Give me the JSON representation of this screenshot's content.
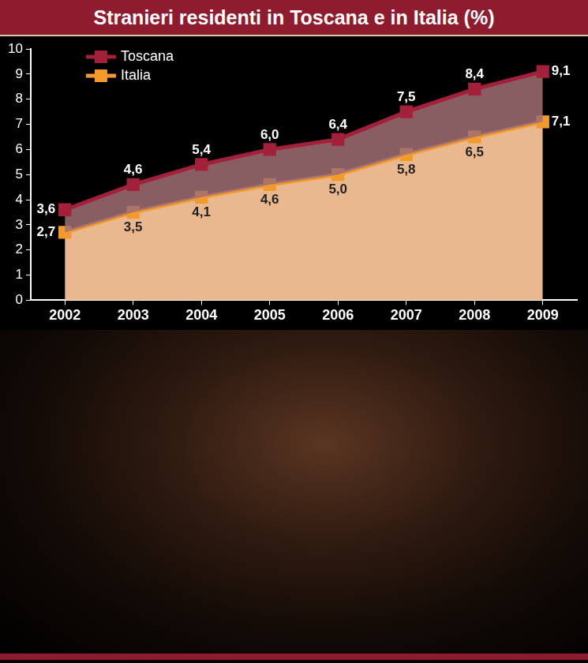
{
  "chart_data": {
    "type": "line",
    "title": "Stranieri residenti in Toscana e in Italia (%)",
    "categories": [
      "2002",
      "2003",
      "2004",
      "2005",
      "2006",
      "2007",
      "2008",
      "2009"
    ],
    "series": [
      {
        "name": "Toscana",
        "color": "#a3203a",
        "marker": "square",
        "values": [
          3.6,
          4.6,
          5.4,
          6.0,
          6.4,
          7.5,
          8.4,
          9.1
        ],
        "value_labels": [
          "3,6",
          "4,6",
          "5,4",
          "6,0",
          "6,4",
          "7,5",
          "8,4",
          "9,1"
        ]
      },
      {
        "name": "Italia",
        "color": "#f39a2c",
        "marker": "square",
        "values": [
          2.7,
          3.5,
          4.1,
          4.6,
          5.0,
          5.8,
          6.5,
          7.1
        ],
        "value_labels": [
          "2,7",
          "3,5",
          "4,1",
          "4,6",
          "5,0",
          "5,8",
          "6,5",
          "7,1"
        ]
      }
    ],
    "ylim": [
      0,
      10
    ],
    "yticks": [
      0,
      1,
      2,
      3,
      4,
      5,
      6,
      7,
      8,
      9,
      10
    ],
    "grid": false,
    "legend": "upper left",
    "data_labels": true
  }
}
